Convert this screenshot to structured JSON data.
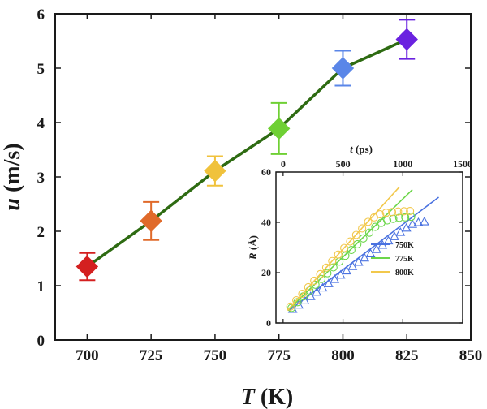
{
  "chart_data": [
    {
      "type": "line",
      "title": "",
      "xlabel": "T (K)",
      "xlabel_var": "T",
      "xlabel_unit": " (K)",
      "ylabel": "u (m/s)",
      "ylabel_var": "u",
      "ylabel_unit": " (m/s)",
      "xlim": [
        687.5,
        850
      ],
      "ylim": [
        0,
        6
      ],
      "xticks": [
        700,
        725,
        750,
        775,
        800,
        825,
        850
      ],
      "yticks": [
        0,
        1,
        2,
        3,
        4,
        5,
        6
      ],
      "series": [
        {
          "name": "u",
          "line_color": "#2e6b12",
          "marker": "diamond",
          "x": [
            700,
            725,
            750,
            775,
            800,
            825
          ],
          "y": [
            1.35,
            2.19,
            3.11,
            3.89,
            5.0,
            5.53
          ],
          "err_low": [
            0.25,
            0.35,
            0.27,
            0.47,
            0.32,
            0.36
          ],
          "err_high": [
            0.25,
            0.35,
            0.27,
            0.47,
            0.32,
            0.36
          ],
          "point_colors": [
            "#d42020",
            "#e06a2a",
            "#f0c23c",
            "#6fd034",
            "#5a86e8",
            "#6a22e0"
          ]
        }
      ]
    },
    {
      "type": "line",
      "title": "",
      "xlabel": "t (ps)",
      "xlabel_var": "t",
      "xlabel_unit": " (ps)",
      "ylabel": "R (Å)",
      "ylabel_var": "R",
      "ylabel_unit": " (Å)",
      "xlim": [
        -60,
        1500
      ],
      "ylim": [
        0,
        60
      ],
      "xticks": [
        0,
        500,
        1000,
        1500
      ],
      "yticks": [
        0,
        20,
        40,
        60
      ],
      "x_axis_position": "top",
      "legend_position": "bottom-right",
      "series": [
        {
          "name": "750K",
          "color": "#4a72e0",
          "marker": "triangle",
          "fit_x": [
            50,
            1300
          ],
          "fit_y": [
            5,
            50
          ],
          "x": [
            80,
            130,
            180,
            230,
            280,
            330,
            380,
            430,
            480,
            530,
            580,
            630,
            680,
            730,
            780,
            830,
            880,
            930,
            980,
            1030,
            1080,
            1130,
            1180
          ],
          "y": [
            5.5,
            7.2,
            8.9,
            10.6,
            12.3,
            14,
            15.7,
            17.4,
            19.1,
            20.8,
            22.5,
            24.2,
            25.9,
            27.6,
            29.3,
            31,
            32.7,
            34.4,
            36.1,
            37.8,
            39.3,
            40,
            40.3
          ]
        },
        {
          "name": "775K",
          "color": "#6cd64a",
          "marker": "circle",
          "fit_x": [
            40,
            1080
          ],
          "fit_y": [
            5,
            53
          ],
          "x": [
            70,
            120,
            170,
            220,
            270,
            320,
            370,
            420,
            470,
            520,
            570,
            620,
            670,
            720,
            770,
            820,
            870,
            920,
            970,
            1020,
            1070
          ],
          "y": [
            6,
            8.3,
            10.6,
            12.9,
            15.2,
            17.5,
            19.8,
            22.1,
            24.4,
            26.7,
            29,
            31.3,
            33.6,
            35.9,
            38.2,
            39.8,
            40.8,
            41.4,
            41.8,
            42,
            42.2
          ]
        },
        {
          "name": "800K",
          "color": "#f2c84c",
          "marker": "circle",
          "fit_x": [
            35,
            970
          ],
          "fit_y": [
            5,
            54
          ],
          "x": [
            60,
            110,
            160,
            210,
            260,
            310,
            360,
            410,
            460,
            510,
            560,
            610,
            660,
            710,
            760,
            810,
            860,
            910,
            960,
            1010,
            1060
          ],
          "y": [
            6.5,
            9,
            11.6,
            14.2,
            16.8,
            19.4,
            22,
            24.6,
            27.2,
            29.8,
            32.4,
            35,
            37.6,
            40.2,
            42,
            43.2,
            43.8,
            44.1,
            44.3,
            44.4,
            44.5
          ]
        }
      ]
    }
  ]
}
